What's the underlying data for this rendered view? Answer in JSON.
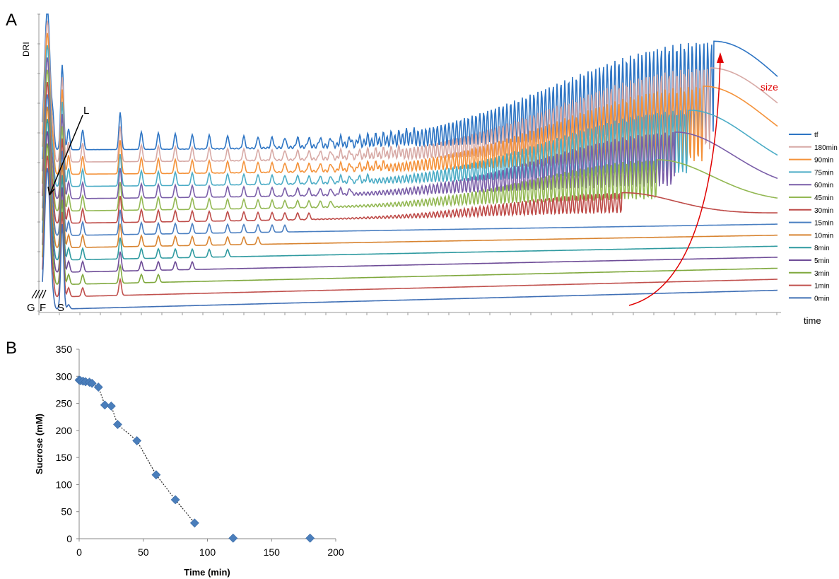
{
  "panels": {
    "a_label": "A",
    "b_label": "B"
  },
  "chart_data": [
    {
      "type": "line",
      "panel": "A",
      "ylabel": "DRI",
      "xlabel": "time",
      "legend_position": "right",
      "annotations": {
        "G": "G",
        "F": "F",
        "S": "S",
        "L": "L",
        "size": "size"
      },
      "colors": {
        "size_arrow": "#e00000"
      },
      "series": [
        {
          "name": "tf",
          "color": "#2e75c4"
        },
        {
          "name": "180min",
          "color": "#d7a9a5"
        },
        {
          "name": "90min",
          "color": "#f4923a"
        },
        {
          "name": "75min",
          "color": "#4bacc6"
        },
        {
          "name": "60min",
          "color": "#7a5ea8"
        },
        {
          "name": "45min",
          "color": "#93b853"
        },
        {
          "name": "30min",
          "color": "#be4b48"
        },
        {
          "name": "15min",
          "color": "#4a7fc1"
        },
        {
          "name": "10min",
          "color": "#d88431"
        },
        {
          "name": "8min",
          "color": "#2f9aa0"
        },
        {
          "name": "5min",
          "color": "#6e4c97"
        },
        {
          "name": "3min",
          "color": "#7fa83d"
        },
        {
          "name": "1min",
          "color": "#c0504d"
        },
        {
          "name": "0min",
          "color": "#3f6fb5"
        }
      ]
    },
    {
      "type": "scatter",
      "panel": "B",
      "xlabel": "Time (min)",
      "ylabel": "Sucrose (mM)",
      "xlim": [
        0,
        200
      ],
      "ylim": [
        0,
        350
      ],
      "xticks": [
        0,
        50,
        100,
        150,
        200
      ],
      "yticks": [
        0,
        50,
        100,
        150,
        200,
        250,
        300,
        350
      ],
      "marker_color": "#4a7ebb",
      "trendline": "dotted",
      "x": [
        0,
        1,
        3,
        5,
        8,
        10,
        15,
        20,
        25,
        30,
        45,
        60,
        75,
        90,
        120,
        180
      ],
      "y": [
        293,
        292,
        291,
        290,
        289,
        287,
        280,
        247,
        245,
        211,
        181,
        118,
        72,
        29,
        1,
        1
      ]
    }
  ]
}
